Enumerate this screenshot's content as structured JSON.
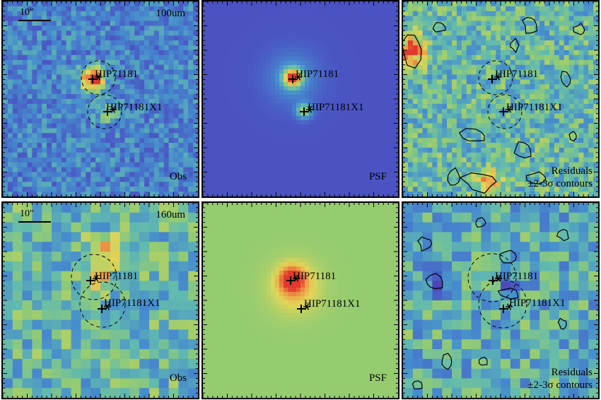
{
  "figure": {
    "rows": [
      {
        "band": "100um",
        "scale": "10\"",
        "obs_label": "Obs",
        "psf_label": "PSF",
        "residual_label": "Residuals",
        "contour_label": "±2-3σ contours",
        "sources": [
          "HIP71181",
          "HIP71181X1"
        ]
      },
      {
        "band": "160um",
        "scale": "10\"",
        "obs_label": "Obs",
        "psf_label": "PSF",
        "residual_label": "Residuals",
        "contour_label": "±2-3σ contours",
        "sources": [
          "HIP71181",
          "HIP71181X1"
        ]
      }
    ]
  },
  "colors": {
    "psf100_bg": "#3f6fc4",
    "psf160_bg": "#8fc06c",
    "contour": "#000000"
  },
  "icons": [
    "plus-marker-icon",
    "asterisk-marker-icon",
    "dashed-circle-icon"
  ]
}
